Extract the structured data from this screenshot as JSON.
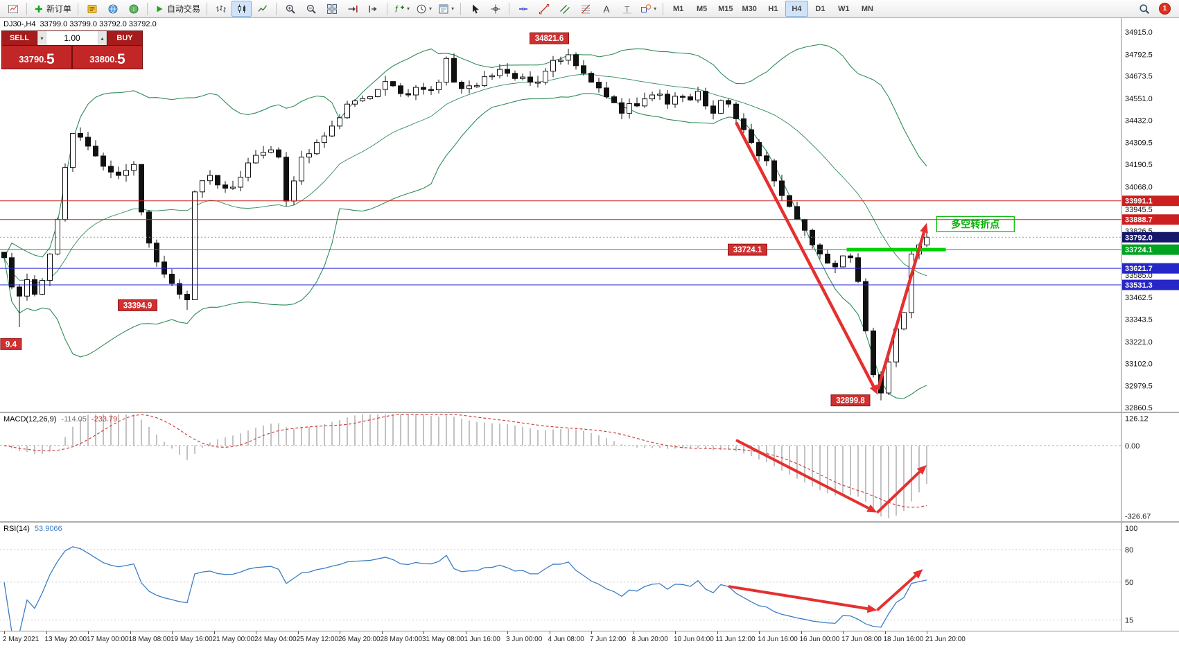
{
  "toolbar": {
    "caret_glyph": "▾",
    "groups": [
      {
        "items": [
          {
            "icon": "new-chart",
            "name": "new-chart-button"
          }
        ]
      },
      {
        "items": [
          {
            "icon": "new-order",
            "name": "new-order-button",
            "label": "新订单"
          }
        ]
      },
      {
        "items": [
          {
            "icon": "metaeditor",
            "name": "metaeditor-button"
          },
          {
            "icon": "market",
            "name": "market-button"
          },
          {
            "icon": "community",
            "name": "community-button"
          }
        ]
      },
      {
        "items": [
          {
            "icon": "auto-trading",
            "name": "auto-trading-button",
            "label": "自动交易"
          }
        ]
      },
      {
        "items": [
          {
            "icon": "chart-bars",
            "name": "chart-bars-button"
          },
          {
            "icon": "chart-candles",
            "name": "chart-candles-button",
            "pressed": true
          },
          {
            "icon": "chart-line",
            "name": "chart-line-button"
          }
        ]
      },
      {
        "items": [
          {
            "icon": "zoom-in",
            "name": "zoom-in-button"
          },
          {
            "icon": "zoom-out",
            "name": "zoom-out-button"
          },
          {
            "icon": "tile-windows",
            "name": "tile-windows-button"
          },
          {
            "icon": "auto-scroll",
            "name": "auto-scroll-button"
          },
          {
            "icon": "chart-shift",
            "name": "chart-shift-button"
          }
        ]
      },
      {
        "items": [
          {
            "icon": "indicators",
            "name": "indicators-button",
            "caret": true
          },
          {
            "icon": "periods",
            "name": "periods-button",
            "caret": true
          },
          {
            "icon": "templates",
            "name": "templates-button",
            "caret": true
          }
        ]
      },
      {
        "items": [
          {
            "icon": "cursor",
            "name": "cursor-button"
          },
          {
            "icon": "crosshair",
            "name": "crosshair-button"
          }
        ]
      },
      {
        "items": [
          {
            "icon": "hline",
            "name": "hline-button"
          },
          {
            "icon": "trendline",
            "name": "trendline-button"
          },
          {
            "icon": "channel",
            "name": "channel-button"
          },
          {
            "icon": "fibonacci",
            "name": "fibonacci-button"
          },
          {
            "icon": "text",
            "name": "text-button"
          },
          {
            "icon": "label",
            "name": "label-button"
          },
          {
            "icon": "shapes",
            "name": "shapes-button",
            "caret": true
          }
        ]
      }
    ],
    "timeframes": [
      "M1",
      "M5",
      "M15",
      "M30",
      "H1",
      "H4",
      "D1",
      "W1",
      "MN"
    ],
    "active_timeframe": "H4",
    "notification_count": "1"
  },
  "one_click": {
    "sell_label": "SELL",
    "buy_label": "BUY",
    "volume": "1.00",
    "sell_price_main": "33790.",
    "sell_price_big": "5",
    "buy_price_main": "33800.",
    "buy_price_big": "5",
    "spinner_up": "▴",
    "spinner_down": "▾"
  },
  "chart": {
    "symbol": "DJ30-,H4",
    "ohlc_text": "33799.0 33799.0 33792.0 33792.0",
    "scale_ticks": [
      "34915.0",
      "34792.5",
      "34673.5",
      "34551.0",
      "34432.0",
      "34309.5",
      "34190.5",
      "34068.0",
      "33945.5",
      "33826.5",
      "33585.0",
      "33462.5",
      "33343.5",
      "33221.0",
      "33102.0",
      "32979.5",
      "32860.5"
    ],
    "scale_badges": [
      {
        "label": "33991.1",
        "value": 33991.1,
        "bg": "#cc2020"
      },
      {
        "label": "33888.7",
        "value": 33888.7,
        "bg": "#cc2020"
      },
      {
        "label": "33792.0",
        "value": 33792.0,
        "bg": "#16166b"
      },
      {
        "label": "33724.1",
        "value": 33724.1,
        "bg": "#00a321"
      },
      {
        "label": "33621.7",
        "value": 33621.7,
        "bg": "#2626c9"
      },
      {
        "label": "33531.3",
        "value": 33531.3,
        "bg": "#2626c9"
      }
    ],
    "levels": [
      {
        "value": 33991.1,
        "color": "#cc2020"
      },
      {
        "value": 33888.7,
        "color": "#cc2020"
      },
      {
        "value": 33724.1,
        "color": "#00a321"
      },
      {
        "value": 33621.7,
        "color": "#2626c9"
      },
      {
        "value": 33531.3,
        "color": "#2626c9"
      }
    ],
    "current_price": 33792.0
  },
  "indicators": {
    "macd": {
      "name": "MACD(12,26,9)",
      "main_value": "-114.05",
      "signal_value": "-233.79",
      "scale": [
        {
          "label": "126.12",
          "value": 126.12
        },
        {
          "label": "0.00",
          "value": 0
        },
        {
          "label": "-326.67",
          "value": -326.67
        }
      ]
    },
    "rsi": {
      "name": "RSI(14)",
      "value": "53.9066",
      "scale": [
        {
          "label": "100",
          "value": 100,
          "line": false
        },
        {
          "label": "80",
          "value": 80,
          "line": true
        },
        {
          "label": "50",
          "value": 50,
          "line": true
        },
        {
          "label": "15",
          "value": 15,
          "line": true
        }
      ]
    }
  },
  "chart_data": {
    "type": "candlestick",
    "symbol": "DJ30-",
    "timeframe": "H4",
    "y_range": [
      32860.5,
      34915.0
    ],
    "candle_count": 122,
    "key_points": {
      "peak_high": 34821.6,
      "swing_low": 33394.9,
      "crash_low": 32899.8,
      "support": 33724.1,
      "last_close": 33792.0,
      "resistance_1": 33888.7,
      "resistance_2": 33991.1,
      "support_blue_1": 33621.7,
      "support_blue_2": 33531.3
    },
    "price_path": [
      [
        0,
        33680
      ],
      [
        1,
        33520
      ],
      [
        2,
        33470
      ],
      [
        3,
        33560
      ],
      [
        4,
        33480
      ],
      [
        6,
        33700
      ],
      [
        9,
        34360
      ],
      [
        11,
        34290
      ],
      [
        13,
        34180
      ],
      [
        15,
        34130
      ],
      [
        17,
        34190
      ],
      [
        18,
        33930
      ],
      [
        19,
        33760
      ],
      [
        21,
        33590
      ],
      [
        23,
        33480
      ],
      [
        24,
        33450
      ],
      [
        25,
        34040
      ],
      [
        27,
        34130
      ],
      [
        29,
        34060
      ],
      [
        31,
        34120
      ],
      [
        33,
        34240
      ],
      [
        35,
        34270
      ],
      [
        36,
        34230
      ],
      [
        37,
        33990
      ],
      [
        38,
        34100
      ],
      [
        39,
        34230
      ],
      [
        41,
        34310
      ],
      [
        43,
        34400
      ],
      [
        45,
        34520
      ],
      [
        47,
        34550
      ],
      [
        49,
        34600
      ],
      [
        51,
        34620
      ],
      [
        53,
        34570
      ],
      [
        55,
        34600
      ],
      [
        57,
        34640
      ],
      [
        58,
        34770
      ],
      [
        59,
        34640
      ],
      [
        61,
        34620
      ],
      [
        63,
        34670
      ],
      [
        65,
        34710
      ],
      [
        67,
        34660
      ],
      [
        69,
        34640
      ],
      [
        71,
        34700
      ],
      [
        73,
        34760
      ],
      [
        74,
        34790
      ],
      [
        75,
        34730
      ],
      [
        77,
        34640
      ],
      [
        79,
        34560
      ],
      [
        81,
        34470
      ],
      [
        83,
        34510
      ],
      [
        85,
        34570
      ],
      [
        87,
        34520
      ],
      [
        89,
        34560
      ],
      [
        91,
        34590
      ],
      [
        92,
        34510
      ],
      [
        93,
        34470
      ],
      [
        94,
        34540
      ],
      [
        95,
        34520
      ],
      [
        96,
        34440
      ],
      [
        97,
        34380
      ],
      [
        98,
        34310
      ],
      [
        100,
        34210
      ],
      [
        101,
        34100
      ],
      [
        103,
        33960
      ],
      [
        105,
        33830
      ],
      [
        106,
        33750
      ],
      [
        107,
        33700
      ],
      [
        108,
        33650
      ],
      [
        109,
        33630
      ],
      [
        110,
        33690
      ],
      [
        111,
        33680
      ],
      [
        112,
        33550
      ],
      [
        113,
        33280
      ],
      [
        114,
        33040
      ],
      [
        115,
        32940
      ],
      [
        116,
        33110
      ],
      [
        117,
        33290
      ],
      [
        118,
        33380
      ],
      [
        119,
        33700
      ],
      [
        120,
        33750
      ],
      [
        121,
        33792
      ]
    ],
    "spikes": {
      "2": {
        "low": 33300
      },
      "24": {
        "low": 33394.9
      },
      "74": {
        "high": 34821.6
      },
      "115": {
        "low": 32899.8
      }
    },
    "bollinger": {
      "period": 20,
      "deviation": 2
    },
    "annotations": {
      "price_labels": [
        {
          "text": "34821.6",
          "i": 71.5,
          "price": 34880
        },
        {
          "text": "33394.9",
          "i": 17.5,
          "price": 33420
        },
        {
          "text": "33724.1",
          "i": 97.5,
          "price": 33724.1
        },
        {
          "text": "32899.8",
          "i": 111,
          "price": 32899.8
        },
        {
          "text": "9.4",
          "i": 0.9,
          "price": 33208,
          "w": 30
        }
      ],
      "turning_point": {
        "text": "多空转折点",
        "i": 122.3,
        "price": 33860
      },
      "support_segment": {
        "from_i": 110.5,
        "to_i": 123.5,
        "price": 33724.1
      },
      "arrows": [
        {
          "from": [
            96,
            34420
          ],
          "to": [
            114.6,
            32930
          ]
        },
        {
          "from": [
            114.6,
            32960
          ],
          "to": [
            121,
            33870
          ]
        }
      ]
    },
    "macd_arrows": [
      {
        "from": [
          96,
          25
        ],
        "to": [
          114.5,
          -310
        ]
      },
      {
        "from": [
          114.5,
          -310
        ],
        "to": [
          121,
          -90
        ]
      }
    ],
    "rsi_arrows": [
      {
        "from": [
          95,
          46
        ],
        "to": [
          114.5,
          24
        ]
      },
      {
        "from": [
          114.5,
          24
        ],
        "to": [
          120.5,
          62
        ]
      }
    ]
  },
  "time_axis": [
    "2 May 2021",
    "13 May 20:00",
    "17 May 00:00",
    "18 May 08:00",
    "19 May 16:00",
    "21 May 00:00",
    "24 May 04:00",
    "25 May 12:00",
    "26 May 20:00",
    "28 May 04:00",
    "31 May 08:00",
    "1 Jun 16:00",
    "3 Jun 00:00",
    "4 Jun 08:00",
    "7 Jun 12:00",
    "8 Jun 20:00",
    "10 Jun 04:00",
    "11 Jun 12:00",
    "14 Jun 16:00",
    "16 Jun 00:00",
    "17 Jun 08:00",
    "18 Jun 16:00",
    "21 Jun 20:00"
  ]
}
